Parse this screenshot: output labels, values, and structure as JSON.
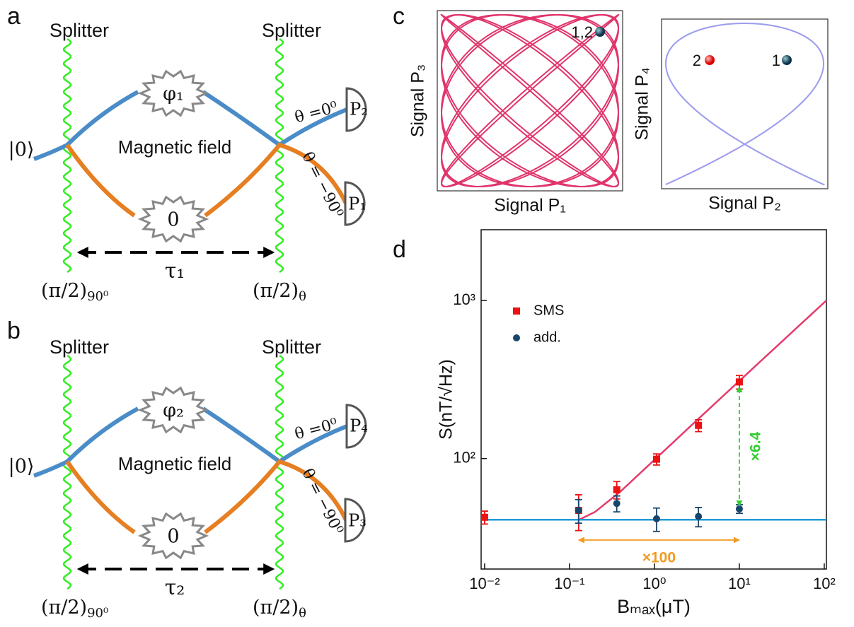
{
  "panel_labels": [
    "a",
    "b",
    "c",
    "d"
  ],
  "diagrams": [
    {
      "splitter_left": "Splitter",
      "splitter_right": "Splitter",
      "phase_top": "φ₁",
      "phase_bottom": "0",
      "input": "|0⟩",
      "field": "Magnetic field",
      "theta_top": "θ =0⁰",
      "theta_bottom": "θ = −90⁰",
      "detector_top": "P₂",
      "detector_bottom": "P₁",
      "delay": "τ₁",
      "pulse_left": {
        "base": "(π/2)",
        "sub": "90⁰"
      },
      "pulse_right": {
        "base": "(π/2)",
        "sub": "θ"
      }
    },
    {
      "splitter_left": "Splitter",
      "splitter_right": "Splitter",
      "phase_top": "φ₂",
      "phase_bottom": "0",
      "input": "|0⟩",
      "field": "Magnetic field",
      "theta_top": "θ =0⁰",
      "theta_bottom": "θ = −90⁰",
      "detector_top": "P₄",
      "detector_bottom": "P₃",
      "delay": "τ₂",
      "pulse_left": {
        "base": "(π/2)",
        "sub": "90⁰"
      },
      "pulse_right": {
        "base": "(π/2)",
        "sub": "θ"
      }
    }
  ],
  "lissajous": [
    {
      "xlabel": "Signal P₁",
      "ylabel": "Signal P₃",
      "point_labels": [
        "1,2"
      ]
    },
    {
      "xlabel": "Signal P₂",
      "ylabel": "Signal P₄",
      "point_labels": [
        "2",
        "1"
      ]
    }
  ],
  "chart_data": {
    "type": "scatter",
    "xlabel": "Bₘₐₓ(μT)",
    "ylabel": "S(nT/√Hz)",
    "xscale": "log",
    "yscale": "log",
    "xlim": [
      0.0091,
      106
    ],
    "ylim": [
      20,
      2800
    ],
    "xticks": [
      {
        "value": 0.01,
        "label": "10⁻²"
      },
      {
        "value": 0.1,
        "label": "10⁻¹"
      },
      {
        "value": 1,
        "label": "10⁰"
      },
      {
        "value": 10,
        "label": "10¹"
      },
      {
        "value": 100,
        "label": "10²"
      }
    ],
    "yticks": [
      {
        "value": 100,
        "label": "10²"
      },
      {
        "value": 1000,
        "label": "10³"
      }
    ],
    "legend": "upper left",
    "series": [
      {
        "name": "SMS",
        "color": "#ee1111",
        "marker": "square",
        "x": [
          0.01,
          0.128,
          0.36,
          1.06,
          3.3,
          10
        ],
        "values": [
          42.5,
          47,
          63.5,
          99,
          162,
          305
        ],
        "errors": [
          4,
          12,
          8,
          8,
          14,
          30
        ]
      },
      {
        "name": "add.",
        "color": "#17456b",
        "marker": "circle",
        "x": [
          0.128,
          0.36,
          1.06,
          3.3,
          10
        ],
        "values": [
          47,
          52,
          41.6,
          43,
          48
        ],
        "errors": [
          8,
          6,
          7,
          6,
          3
        ]
      }
    ],
    "lines": [
      {
        "color": "#e43b6a",
        "x": [
          0.0091,
          0.13,
          0.2,
          0.4,
          1,
          3,
          10,
          106
        ],
        "values": [
          41,
          41,
          46,
          62,
          98,
          170,
          310,
          1000
        ]
      },
      {
        "color": "#1f9bd7",
        "x": [
          0.0091,
          106
        ],
        "values": [
          41,
          41
        ]
      }
    ],
    "annotations": [
      {
        "text": "×100",
        "color": "#f39a1f",
        "x": [
          0.128,
          10
        ],
        "y": [
          30.5,
          30.5
        ]
      },
      {
        "text": "×6.4",
        "color": "#33cc33",
        "x": [
          10,
          10
        ],
        "y": [
          50,
          285
        ]
      }
    ]
  }
}
